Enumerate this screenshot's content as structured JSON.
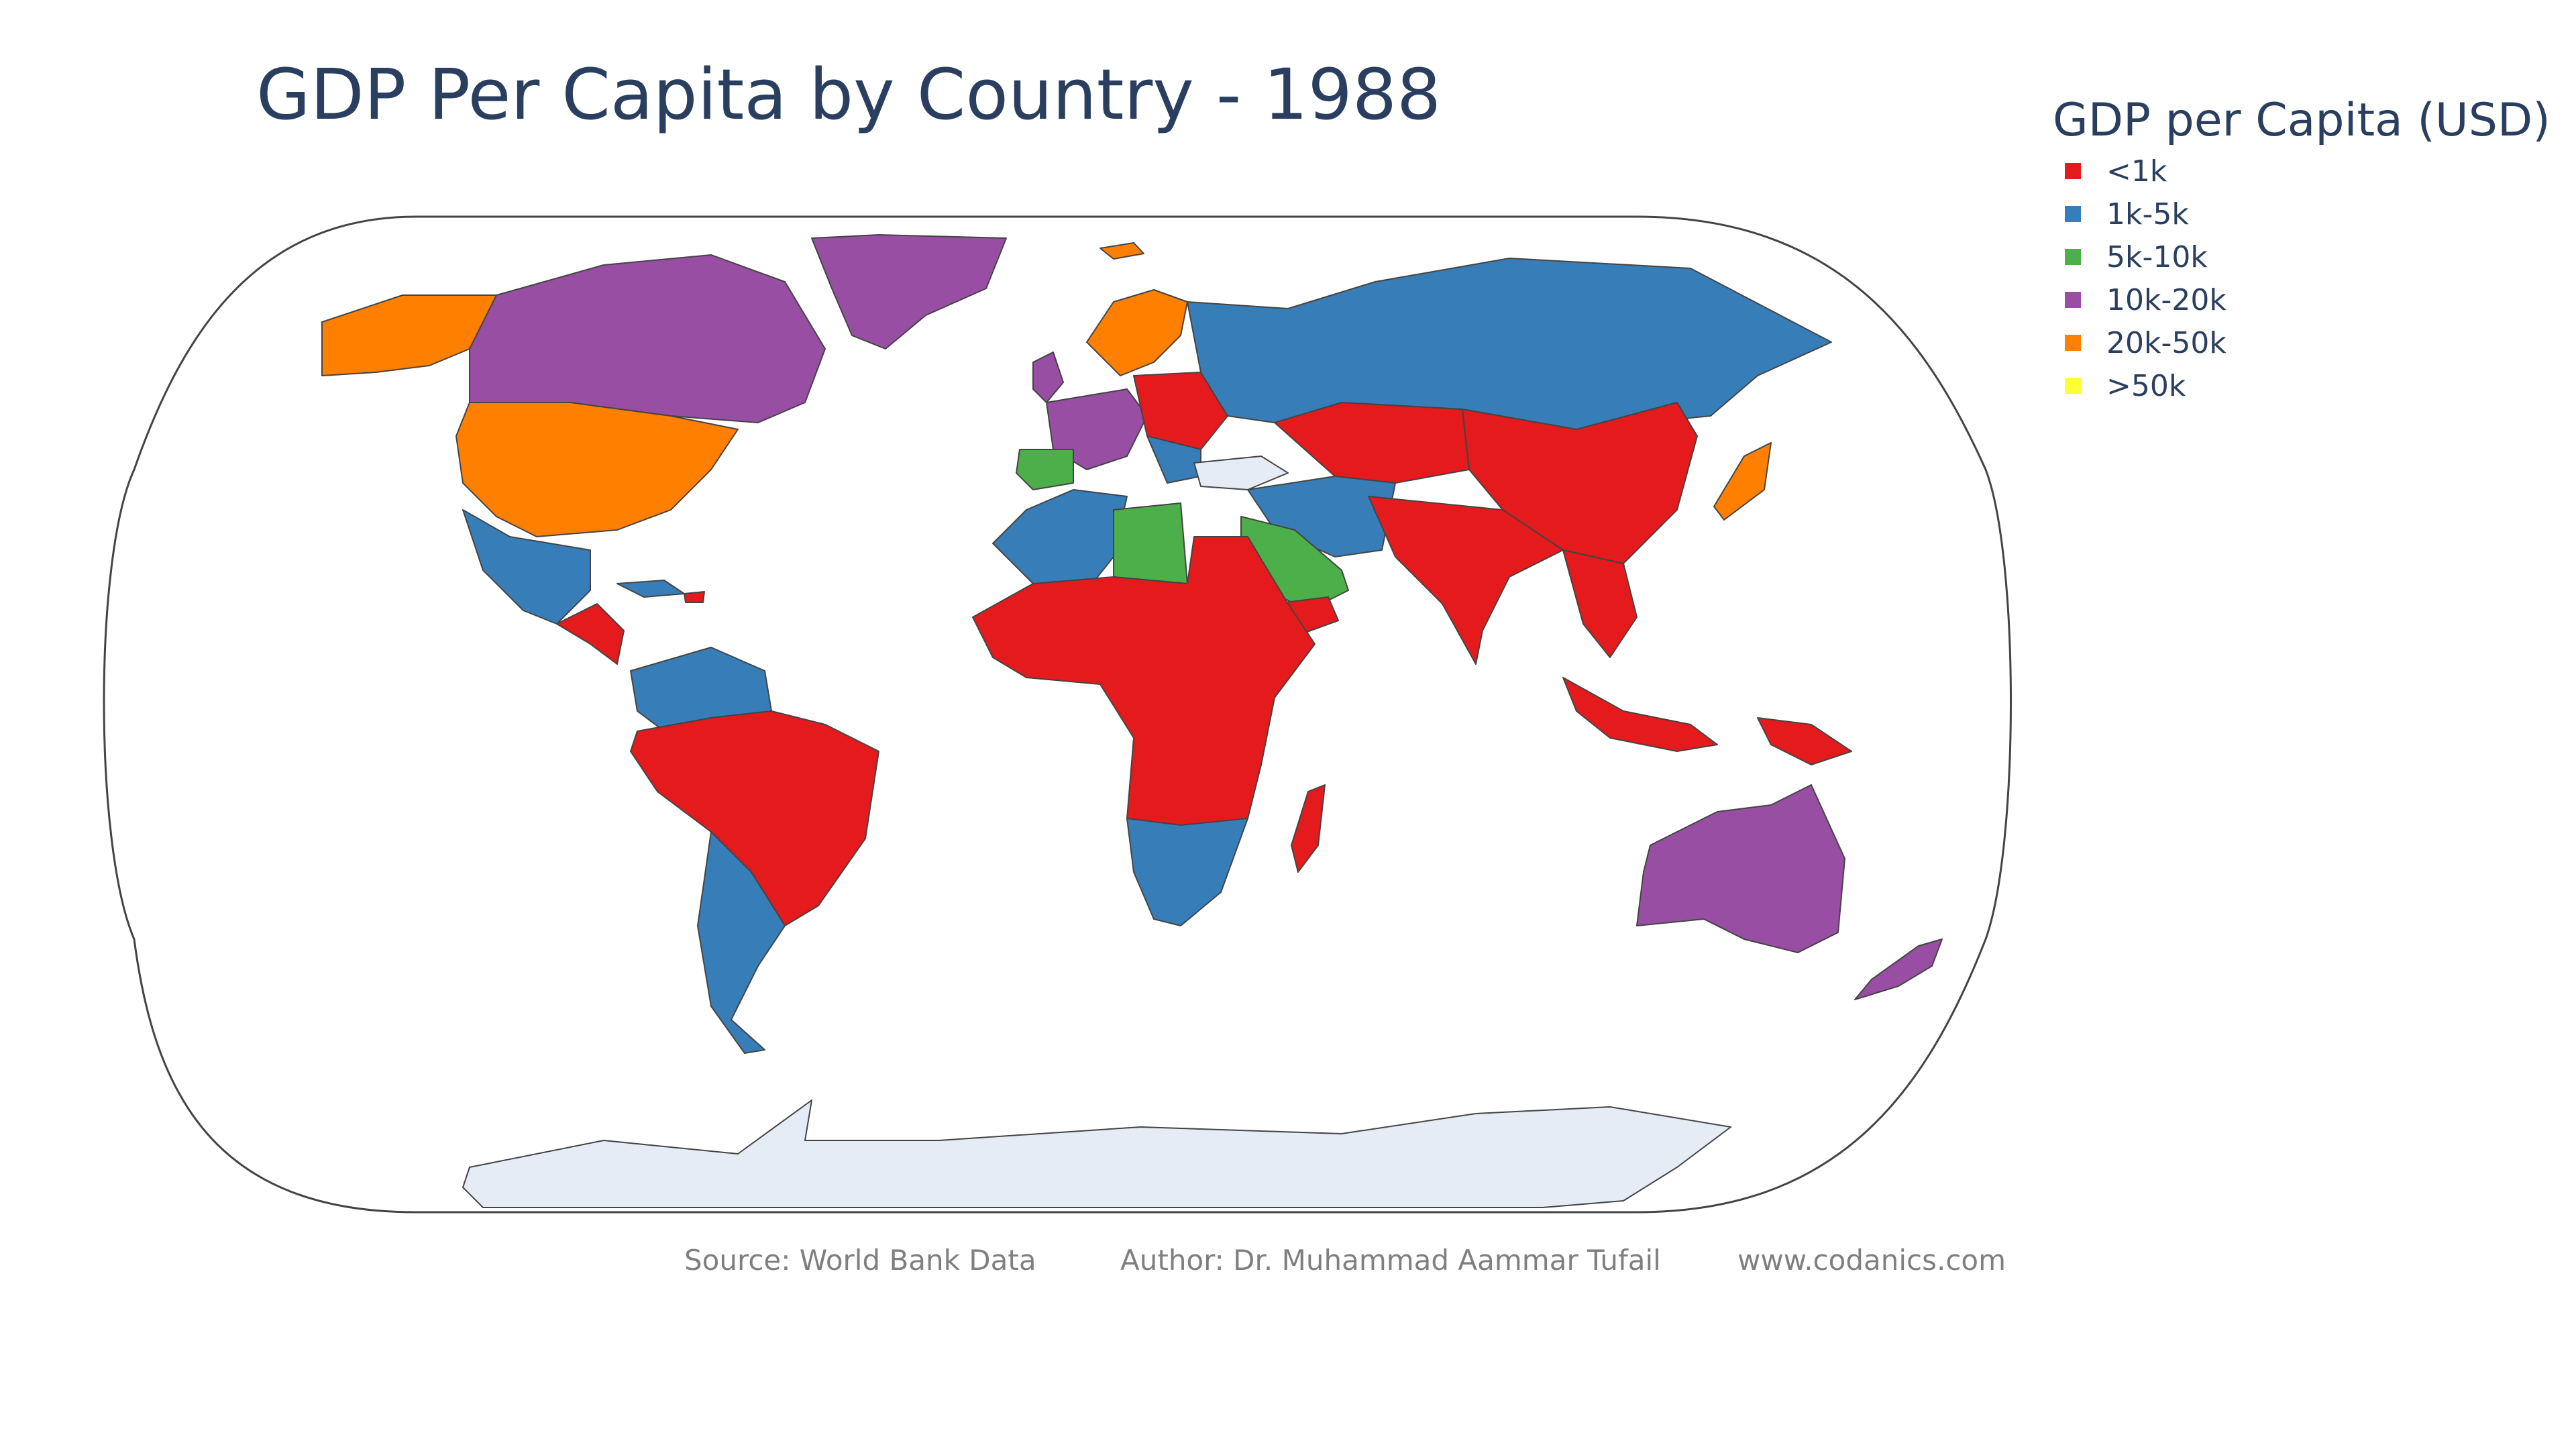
{
  "title": "GDP Per Capita by Country - 1988",
  "legend": {
    "title": "GDP per Capita (USD)",
    "items": [
      {
        "label": "<1k",
        "color": "#e41a1c"
      },
      {
        "label": "1k-5k",
        "color": "#377eb8"
      },
      {
        "label": "5k-10k",
        "color": "#4daf4a"
      },
      {
        "label": "10k-20k",
        "color": "#984ea3"
      },
      {
        "label": "20k-50k",
        "color": "#ff7f00"
      },
      {
        "label": ">50k",
        "color": "#ffff33"
      }
    ]
  },
  "no_data_color": "#e5ecf6",
  "border_color": "#444444",
  "footer": {
    "source": "Source: World Bank Data",
    "author": "Author: Dr. Muhammad Aammar Tufail",
    "website": "www.codanics.com"
  }
}
